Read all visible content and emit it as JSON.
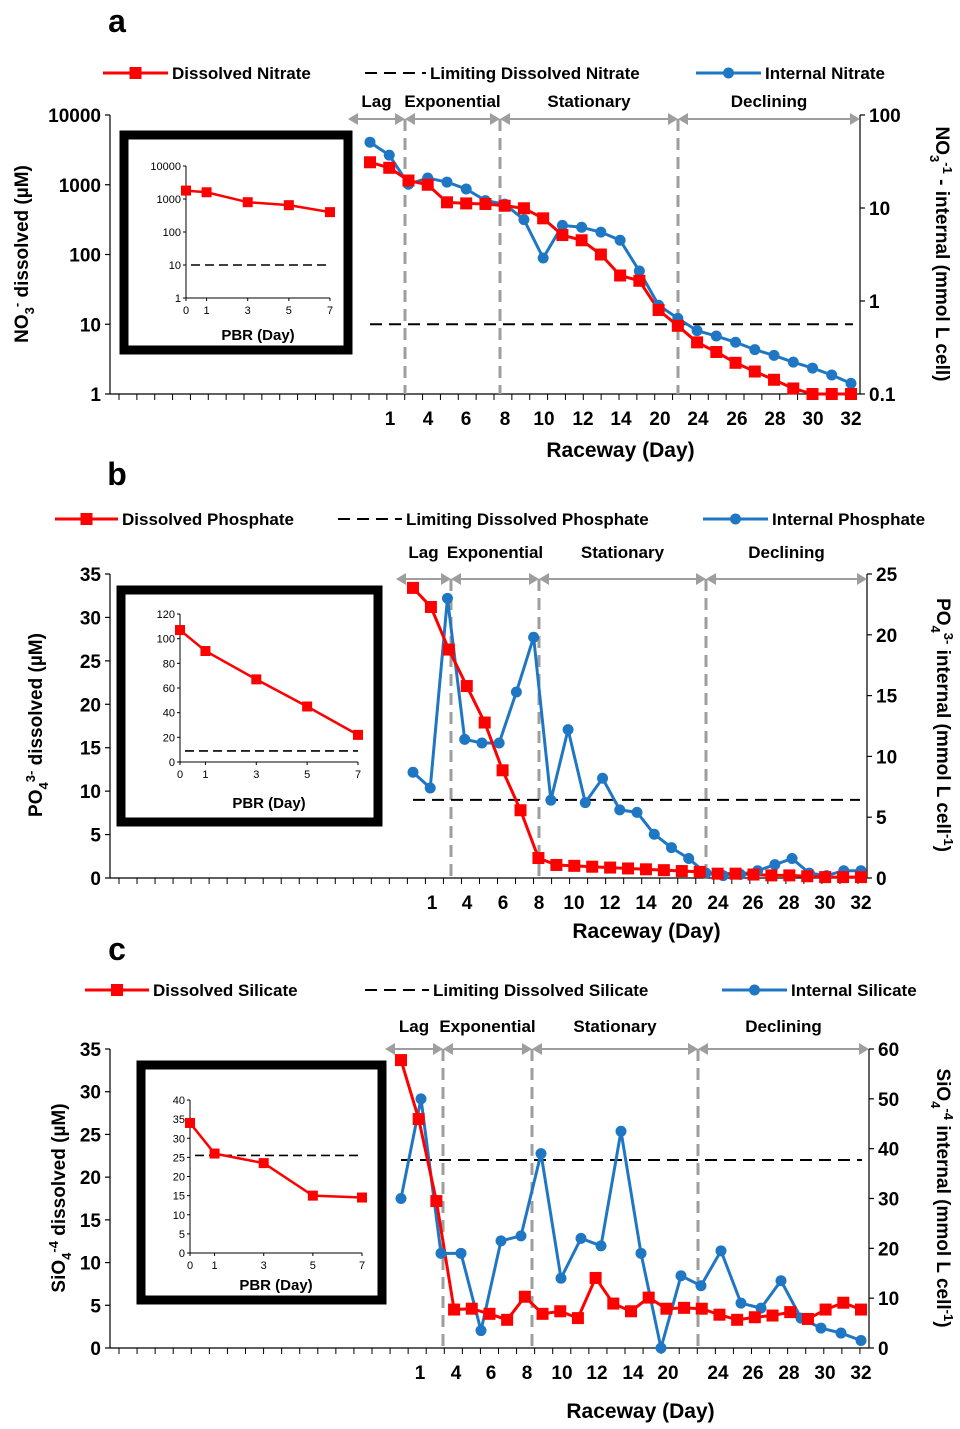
{
  "colors": {
    "dissolved": "#ff0000",
    "internal": "#1f77c4",
    "phase": "#9e9e9e",
    "limit": "#000000"
  },
  "chart_data": [
    {
      "type": "line",
      "panel": "a",
      "xlabel": "Raceway (Day)",
      "ylabel": "NO3- dissolved (µM)",
      "ylabel_parts": {
        "pre": "NO",
        "sub": "3",
        "sup": "-",
        "post": " dissolved (µM)"
      },
      "y2label": "NO3 - internal (mmol L cell-1)",
      "y2label_parts": {
        "pre": "NO",
        "sub": "3",
        "mid": " - internal (mmol L cell",
        "sup": "-1",
        "post": ")"
      },
      "yscale": "log",
      "ylim": [
        1,
        10000
      ],
      "y_ticks": [
        1,
        10,
        100,
        1000,
        10000
      ],
      "y_tick_labels": [
        "1",
        "10",
        "100",
        "1000",
        "10000"
      ],
      "y2scale": "log",
      "y2lim": [
        0.1,
        100
      ],
      "y2_ticks": [
        0.1,
        1,
        10,
        100
      ],
      "y2_tick_labels": [
        "0.1",
        "1",
        "10",
        "100"
      ],
      "legend_position": "top",
      "limit_value": 10,
      "phases": [
        "Lag",
        "Exponential",
        "Stationary",
        "Declining"
      ],
      "x_tick_labels": [
        "1",
        "4",
        "6",
        "8",
        "10",
        "12",
        "14",
        "20",
        "24",
        "26",
        "28",
        "30",
        "32"
      ],
      "series": [
        {
          "name": "Dissolved Nitrate",
          "y": [
            2100,
            1750,
            1150,
            1000,
            560,
            540,
            530,
            500,
            460,
            330,
            190,
            160,
            100,
            50,
            42,
            16,
            9.5,
            5.5,
            4,
            2.8,
            2.1,
            1.6,
            1.2,
            1,
            1,
            1
          ]
        },
        {
          "name": "Limiting Dissolved Nitrate"
        },
        {
          "name": "Internal Nitrate",
          "y2": [
            51,
            37,
            18,
            21,
            19,
            16,
            12,
            11,
            7.5,
            2.9,
            6.5,
            6.2,
            5.5,
            4.5,
            2.1,
            0.9,
            0.65,
            0.48,
            0.42,
            0.36,
            0.3,
            0.26,
            0.22,
            0.19,
            0.16,
            0.13
          ]
        }
      ],
      "inset": {
        "xlabel": "PBR (Day)",
        "x": [
          0,
          1,
          3,
          5,
          7
        ],
        "x_tick_labels": [
          "0",
          "1",
          "3",
          "5",
          "7"
        ],
        "yscale": "log",
        "ylim": [
          1,
          10000
        ],
        "y_ticks": [
          1,
          10,
          100,
          1000,
          10000
        ],
        "y_tick_labels": [
          "1",
          "10",
          "100",
          "1000",
          "10000"
        ],
        "y": [
          1800,
          1600,
          800,
          650,
          400
        ],
        "limit_value": 10
      }
    },
    {
      "type": "line",
      "panel": "b",
      "xlabel": "Raceway (Day)",
      "ylabel": "PO43- dissolved (µM)",
      "ylabel_parts": {
        "pre": "PO",
        "sub": "4",
        "sup": "3-",
        "post": " dissolved (µM)"
      },
      "y2label": "PO43- internal (mmol L cell-1)",
      "y2label_parts": {
        "pre": "PO",
        "sub": "4",
        "sup": "3-",
        "mid": " internal (mmol L cell",
        "sup2": "-1",
        "post": ")"
      },
      "ylim": [
        0,
        35
      ],
      "y_ticks": [
        0,
        5,
        10,
        15,
        20,
        25,
        30,
        35
      ],
      "y_tick_labels": [
        "0",
        "5",
        "10",
        "15",
        "20",
        "25",
        "30",
        "35"
      ],
      "y2lim": [
        0,
        25
      ],
      "y2_ticks": [
        0,
        5,
        10,
        15,
        20,
        25
      ],
      "y2_tick_labels": [
        "0",
        "5",
        "10",
        "15",
        "20",
        "25"
      ],
      "legend_position": "top",
      "limit_value": 9,
      "phases": [
        "Lag",
        "Exponential",
        "Stationary",
        "Declining"
      ],
      "x_tick_labels": [
        "1",
        "4",
        "6",
        "8",
        "10",
        "12",
        "14",
        "20",
        "24",
        "26",
        "28",
        "30",
        "32"
      ],
      "series": [
        {
          "name": "Dissolved Phosphate",
          "y": [
            33.4,
            31.2,
            26.3,
            22.1,
            17.9,
            12.4,
            7.8,
            2.3,
            1.5,
            1.4,
            1.3,
            1.2,
            1.1,
            1.0,
            0.9,
            0.8,
            0.7,
            0.5,
            0.5,
            0.4,
            0.3,
            0.3,
            0.2,
            0.1,
            0.1,
            0.1
          ]
        },
        {
          "name": "Limiting Dissolved Phosphate"
        },
        {
          "name": "Internal Phosphate",
          "y2": [
            8.7,
            7.4,
            23.0,
            11.4,
            11.1,
            11.1,
            15.3,
            19.8,
            6.4,
            12.2,
            6.2,
            8.2,
            5.6,
            5.4,
            3.6,
            2.5,
            1.6,
            0.4,
            0.2,
            0.3,
            0.6,
            1.1,
            1.6,
            0.4,
            0.2,
            0.6,
            0.6
          ]
        }
      ],
      "inset": {
        "xlabel": "PBR (Day)",
        "x": [
          0,
          1,
          3,
          5,
          7
        ],
        "x_tick_labels": [
          "0",
          "1",
          "3",
          "5",
          "7"
        ],
        "ylim": [
          0,
          120
        ],
        "y_ticks": [
          0,
          20,
          40,
          60,
          80,
          100,
          120
        ],
        "y_tick_labels": [
          "0",
          "20",
          "40",
          "60",
          "80",
          "100",
          "120"
        ],
        "y": [
          107,
          90,
          67,
          45,
          22
        ],
        "limit_value": 9
      }
    },
    {
      "type": "line",
      "panel": "c",
      "xlabel": "Raceway (Day)",
      "ylabel": "SiO4-4 dissolved (µM)",
      "ylabel_parts": {
        "pre": "SiO",
        "sub": "4",
        "sup": "-4",
        "post": " dissolved (µM)"
      },
      "y2label": "SiO4-4 internal (mmol L cell-1)",
      "y2label_parts": {
        "pre": "SiO",
        "sub": "4",
        "sup": "-4",
        "mid": " internal (mmol L cell",
        "sup2": "-1",
        "post": ")"
      },
      "ylim": [
        0,
        35
      ],
      "y_ticks": [
        0,
        5,
        10,
        15,
        20,
        25,
        30,
        35
      ],
      "y_tick_labels": [
        "0",
        "5",
        "10",
        "15",
        "20",
        "25",
        "30",
        "35"
      ],
      "y2lim": [
        0,
        60
      ],
      "y2_ticks": [
        0,
        10,
        20,
        30,
        40,
        50,
        60
      ],
      "y2_tick_labels": [
        "0",
        "10",
        "20",
        "30",
        "40",
        "50",
        "60"
      ],
      "legend_position": "top",
      "limit_value": 22,
      "phases": [
        "Lag",
        "Exponential",
        "Stationary",
        "Declining"
      ],
      "x_tick_labels": [
        "1",
        "4",
        "6",
        "8",
        "10",
        "12",
        "14",
        "20",
        "24",
        "26",
        "28",
        "30",
        "32"
      ],
      "series": [
        {
          "name": "Dissolved Silicate",
          "y": [
            33.7,
            26.8,
            17.2,
            4.5,
            4.6,
            4.0,
            3.3,
            6.0,
            4.0,
            4.3,
            3.5,
            8.2,
            5.2,
            4.3,
            5.9,
            4.6,
            4.7,
            4.6,
            3.9,
            3.3,
            3.6,
            3.8,
            4.2,
            3.4,
            4.5,
            5.3,
            4.5
          ]
        },
        {
          "name": "Limiting Dissolved Silicate"
        },
        {
          "name": "Internal Silicate",
          "y2": [
            30,
            50,
            19,
            19,
            3.5,
            21.5,
            22.5,
            39,
            14,
            22,
            20.5,
            43.5,
            19,
            0,
            14.5,
            12.5,
            19.5,
            9,
            8,
            13.5,
            6,
            4,
            3,
            1.5
          ]
        }
      ],
      "inset": {
        "xlabel": "PBR (Day)",
        "x": [
          0,
          1,
          3,
          5,
          7
        ],
        "x_tick_labels": [
          "0",
          "1",
          "3",
          "5",
          "7"
        ],
        "ylim": [
          0,
          40
        ],
        "y_ticks": [
          0,
          5,
          10,
          15,
          20,
          25,
          30,
          35,
          40
        ],
        "y_tick_labels": [
          "0",
          "5",
          "10",
          "15",
          "20",
          "25",
          "30",
          "35",
          "40"
        ],
        "y": [
          34,
          26,
          23.5,
          15,
          14.5
        ],
        "limit_value": 25.5
      }
    }
  ]
}
